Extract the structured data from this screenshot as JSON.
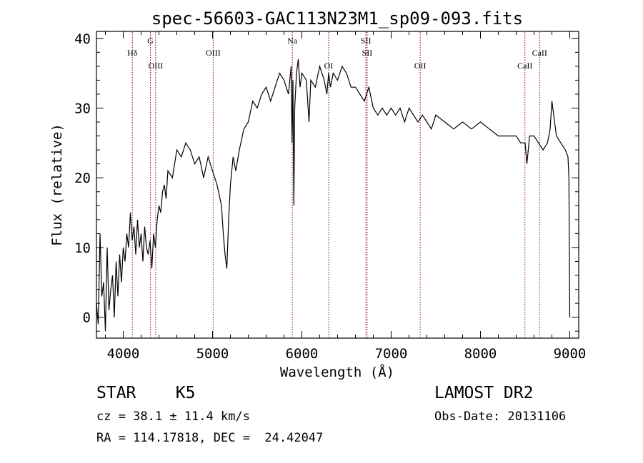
{
  "chart_data": {
    "type": "line",
    "title": "spec-56603-GAC113N23M1_sp09-093.fits",
    "xlabel": "Wavelength (Å)",
    "ylabel": "Flux (relative)",
    "xlim": [
      3700,
      9100
    ],
    "ylim": [
      -3,
      41
    ],
    "xticks": [
      4000,
      5000,
      6000,
      7000,
      8000,
      9000
    ],
    "yticks": [
      0,
      10,
      20,
      30,
      40
    ],
    "grid": false,
    "line_color": "#000000",
    "marker_color": "#8b0000",
    "series": [
      {
        "x": [
          3700,
          3720,
          3740,
          3760,
          3780,
          3800,
          3820,
          3840,
          3860,
          3880,
          3900,
          3920,
          3940,
          3960,
          3980,
          4000,
          4020,
          4040,
          4060,
          4080,
          4100,
          4120,
          4140,
          4160,
          4180,
          4200,
          4220,
          4240,
          4260,
          4280,
          4300,
          4320,
          4340,
          4360,
          4380,
          4400,
          4420,
          4440,
          4460,
          4480,
          4500,
          4550,
          4600,
          4650,
          4700,
          4750,
          4800,
          4850,
          4900,
          4950,
          5000,
          5050,
          5100,
          5120,
          5140,
          5160,
          5180,
          5200,
          5230,
          5260,
          5300,
          5350,
          5400,
          5450,
          5500,
          5550,
          5600,
          5650,
          5700,
          5750,
          5800,
          5850,
          5880,
          5890,
          5900,
          5910,
          5920,
          5940,
          5960,
          5980,
          6000,
          6050,
          6080,
          6100,
          6150,
          6200,
          6250,
          6280,
          6300,
          6320,
          6350,
          6400,
          6450,
          6500,
          6550,
          6600,
          6650,
          6700,
          6750,
          6800,
          6850,
          6900,
          6950,
          7000,
          7050,
          7100,
          7150,
          7200,
          7250,
          7300,
          7350,
          7400,
          7450,
          7500,
          7600,
          7700,
          7800,
          7900,
          8000,
          8100,
          8200,
          8300,
          8400,
          8450,
          8500,
          8520,
          8550,
          8600,
          8650,
          8700,
          8750,
          8780,
          8800,
          8850,
          8900,
          8950,
          8980,
          8990,
          9000
        ],
        "y": [
          2,
          -1,
          12,
          3,
          5,
          -2,
          10,
          1,
          4,
          6,
          0,
          8,
          3,
          9,
          5,
          10,
          8,
          12,
          10,
          15,
          11,
          13,
          9,
          14,
          10,
          12,
          8,
          13,
          10,
          9,
          11,
          7,
          12,
          10,
          14,
          16,
          15,
          18,
          19,
          17,
          21,
          20,
          24,
          23,
          25,
          24,
          22,
          23,
          20,
          23,
          21,
          19,
          16,
          12,
          9,
          7,
          14,
          19,
          23,
          21,
          24,
          27,
          28,
          31,
          30,
          32,
          33,
          31,
          33,
          35,
          34,
          32,
          36,
          25,
          34,
          16,
          30,
          35,
          37,
          33,
          35,
          34,
          28,
          34,
          33,
          36,
          34,
          32,
          35,
          33,
          35,
          34,
          36,
          35,
          33,
          33,
          32,
          31,
          33,
          30,
          29,
          30,
          29,
          30,
          29,
          30,
          28,
          30,
          29,
          28,
          29,
          28,
          27,
          29,
          28,
          27,
          28,
          27,
          28,
          27,
          26,
          26,
          26,
          25,
          25,
          22,
          26,
          26,
          25,
          24,
          25,
          27,
          31,
          26,
          25,
          24,
          23,
          20,
          0
        ]
      }
    ],
    "spectral_lines": [
      {
        "label": "Hδ",
        "wavelength": 4102,
        "row": 1
      },
      {
        "label": "G",
        "wavelength": 4304,
        "row": 0
      },
      {
        "label": "OIII",
        "wavelength": 4363,
        "row": 2
      },
      {
        "label": "OIII",
        "wavelength": 5007,
        "row": 1
      },
      {
        "label": "Na",
        "wavelength": 5893,
        "row": 0
      },
      {
        "label": "OI",
        "wavelength": 6300,
        "row": 2
      },
      {
        "label": "SII",
        "wavelength": 6717,
        "row": 0
      },
      {
        "label": "SII",
        "wavelength": 6731,
        "row": 1
      },
      {
        "label": "OII",
        "wavelength": 7325,
        "row": 2
      },
      {
        "label": "CaII",
        "wavelength": 8498,
        "row": 2
      },
      {
        "label": "CaII",
        "wavelength": 8662,
        "row": 1
      }
    ]
  },
  "info": {
    "class_line": "STAR    K5",
    "survey": "LAMOST DR2",
    "cz": "cz = 38.1 ± 11.4 km/s",
    "obs_date": "Obs-Date: 20131106",
    "coords": "RA = 114.17818, DEC =  24.42047"
  }
}
